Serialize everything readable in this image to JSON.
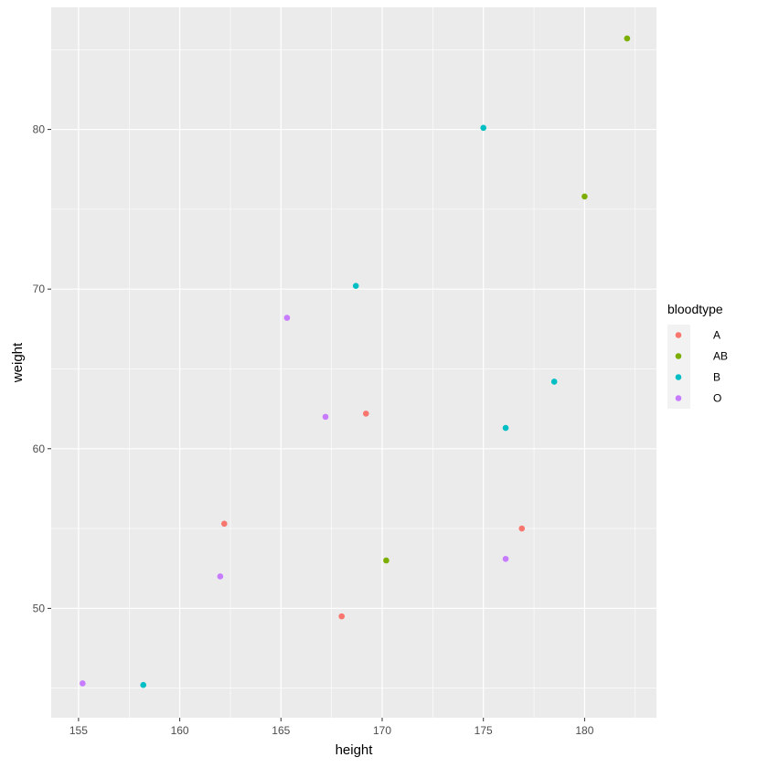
{
  "chart_data": {
    "type": "scatter",
    "title": "",
    "xlabel": "height",
    "ylabel": "weight",
    "xlim": [
      153.65,
      183.55
    ],
    "ylim": [
      43.15,
      87.65
    ],
    "x_ticks": [
      155,
      160,
      165,
      170,
      175,
      180
    ],
    "y_ticks": [
      50,
      60,
      70,
      80
    ],
    "grid": true,
    "legend": {
      "title": "bloodtype",
      "placement": "right"
    },
    "series": [
      {
        "name": "A",
        "color": "#F8766D",
        "points": [
          {
            "x": 162.2,
            "y": 55.3
          },
          {
            "x": 169.2,
            "y": 62.2
          },
          {
            "x": 168.0,
            "y": 49.5
          },
          {
            "x": 176.9,
            "y": 55.0
          }
        ]
      },
      {
        "name": "AB",
        "color": "#7CAE00",
        "points": [
          {
            "x": 182.1,
            "y": 85.7
          },
          {
            "x": 180.0,
            "y": 75.8
          },
          {
            "x": 170.2,
            "y": 53.0
          }
        ]
      },
      {
        "name": "B",
        "color": "#00BFC4",
        "points": [
          {
            "x": 175.0,
            "y": 80.1
          },
          {
            "x": 168.7,
            "y": 70.2
          },
          {
            "x": 178.5,
            "y": 64.2
          },
          {
            "x": 176.1,
            "y": 61.3
          },
          {
            "x": 158.2,
            "y": 45.2
          }
        ]
      },
      {
        "name": "O",
        "color": "#C77CFF",
        "points": [
          {
            "x": 165.3,
            "y": 68.2
          },
          {
            "x": 167.2,
            "y": 62.0
          },
          {
            "x": 162.0,
            "y": 52.0
          },
          {
            "x": 176.1,
            "y": 53.1
          },
          {
            "x": 155.2,
            "y": 45.3
          }
        ]
      }
    ]
  }
}
